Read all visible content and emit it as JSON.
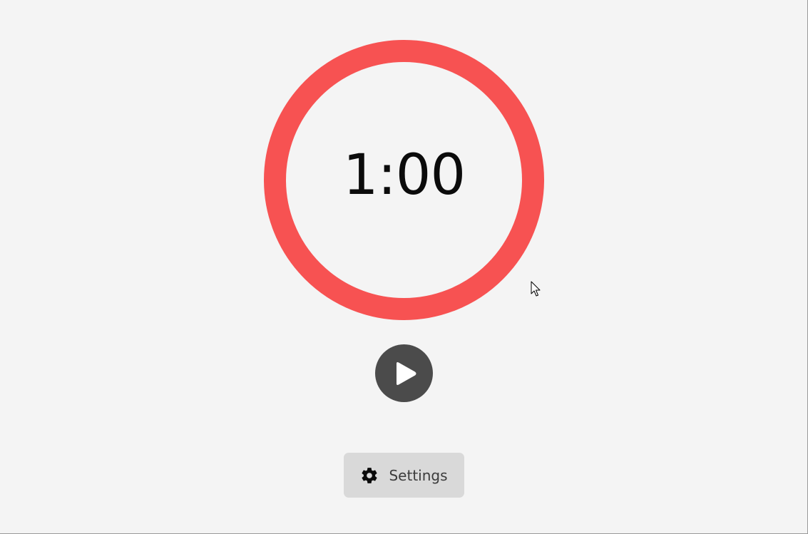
{
  "timer": {
    "display": "1:00",
    "ring_color": "#f75252",
    "progress_fraction": 1.0
  },
  "controls": {
    "play_icon": "play-icon",
    "play_button_color": "#4b4b4b"
  },
  "settings": {
    "label": "Settings",
    "icon": "gear-icon"
  }
}
